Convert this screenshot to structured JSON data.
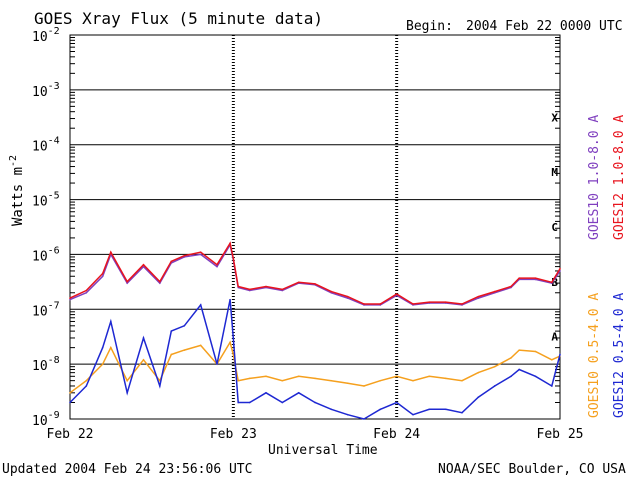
{
  "chart_data": {
    "type": "line",
    "title": "GOES Xray Flux (5 minute data)",
    "begin_label": "Begin:",
    "begin_value": "2004 Feb 22 0000 UTC",
    "xlabel": "Universal Time",
    "ylabel": "Watts m",
    "ylabel_exp": "-2",
    "y_scale": "log",
    "ylim": [
      1e-09,
      0.01
    ],
    "xlim_days": [
      0,
      3
    ],
    "x_tick_labels": [
      "Feb 22",
      "Feb 23",
      "Feb 24",
      "Feb 25"
    ],
    "y_tick_labels": [
      {
        "base": "10",
        "exp": "-2"
      },
      {
        "base": "10",
        "exp": "-3"
      },
      {
        "base": "10",
        "exp": "-4"
      },
      {
        "base": "10",
        "exp": "-5"
      },
      {
        "base": "10",
        "exp": "-6"
      },
      {
        "base": "10",
        "exp": "-7"
      },
      {
        "base": "10",
        "exp": "-8"
      },
      {
        "base": "10",
        "exp": "-9"
      }
    ],
    "flare_classes": [
      "X",
      "M",
      "C",
      "B",
      "A"
    ],
    "grid": true,
    "legend_placement": "right",
    "series": [
      {
        "name": "GOES10 1.0-8.0 A",
        "color": "#7f3fbf",
        "band": "long",
        "sat": "GOES10",
        "x": [
          0,
          0.1,
          0.2,
          0.25,
          0.35,
          0.45,
          0.55,
          0.62,
          0.7,
          0.8,
          0.9,
          0.98,
          1.0,
          1.03,
          1.1,
          1.2,
          1.3,
          1.4,
          1.5,
          1.6,
          1.7,
          1.8,
          1.9,
          2.0,
          2.1,
          2.2,
          2.3,
          2.4,
          2.5,
          2.6,
          2.7,
          2.75,
          2.85,
          2.95,
          3.0
        ],
        "y": [
          1.5e-07,
          2e-07,
          4e-07,
          1e-06,
          3e-07,
          6e-07,
          3e-07,
          7e-07,
          9e-07,
          1e-06,
          6e-07,
          1.5e-06,
          8e-07,
          2.5e-07,
          2.2e-07,
          2.5e-07,
          2.2e-07,
          3e-07,
          2.8e-07,
          2e-07,
          1.6e-07,
          1.2e-07,
          1.2e-07,
          1.8e-07,
          1.2e-07,
          1.3e-07,
          1.3e-07,
          1.2e-07,
          1.6e-07,
          2e-07,
          2.5e-07,
          3.5e-07,
          3.5e-07,
          3e-07,
          5e-07
        ]
      },
      {
        "name": "GOES12 1.0-8.0 A",
        "color": "#e8141e",
        "band": "long",
        "sat": "GOES12",
        "x": [
          0,
          0.1,
          0.2,
          0.25,
          0.35,
          0.45,
          0.55,
          0.62,
          0.7,
          0.8,
          0.9,
          0.98,
          1.0,
          1.03,
          1.1,
          1.2,
          1.3,
          1.4,
          1.5,
          1.6,
          1.7,
          1.8,
          1.9,
          2.0,
          2.1,
          2.2,
          2.3,
          2.4,
          2.5,
          2.6,
          2.7,
          2.75,
          2.85,
          2.95,
          3.0
        ],
        "y": [
          1.6e-07,
          2.2e-07,
          4.5e-07,
          1.1e-06,
          3.2e-07,
          6.5e-07,
          3.2e-07,
          7.5e-07,
          9.5e-07,
          1.1e-06,
          6.5e-07,
          1.6e-06,
          8.5e-07,
          2.6e-07,
          2.3e-07,
          2.6e-07,
          2.3e-07,
          3.1e-07,
          2.9e-07,
          2.1e-07,
          1.7e-07,
          1.25e-07,
          1.25e-07,
          1.9e-07,
          1.25e-07,
          1.35e-07,
          1.35e-07,
          1.25e-07,
          1.7e-07,
          2.1e-07,
          2.6e-07,
          3.7e-07,
          3.7e-07,
          3.1e-07,
          5.5e-07
        ]
      },
      {
        "name": "GOES10 0.5-4.0 A",
        "color": "#f5a01e",
        "band": "short",
        "sat": "GOES10",
        "x": [
          0,
          0.1,
          0.2,
          0.25,
          0.35,
          0.45,
          0.55,
          0.62,
          0.7,
          0.8,
          0.9,
          0.98,
          1.0,
          1.03,
          1.1,
          1.2,
          1.3,
          1.4,
          1.5,
          1.6,
          1.7,
          1.8,
          1.9,
          2.0,
          2.1,
          2.2,
          2.3,
          2.4,
          2.5,
          2.6,
          2.7,
          2.75,
          2.85,
          2.95,
          3.0
        ],
        "y": [
          3e-09,
          5e-09,
          1e-08,
          2e-08,
          5e-09,
          1.2e-08,
          5e-09,
          1.5e-08,
          1.8e-08,
          2.2e-08,
          1e-08,
          2.5e-08,
          1.5e-08,
          5e-09,
          5.5e-09,
          6e-09,
          5e-09,
          6e-09,
          5.5e-09,
          5e-09,
          4.5e-09,
          4e-09,
          5e-09,
          6e-09,
          5e-09,
          6e-09,
          5.5e-09,
          5e-09,
          7e-09,
          9e-09,
          1.3e-08,
          1.8e-08,
          1.7e-08,
          1.2e-08,
          1.4e-08
        ]
      },
      {
        "name": "GOES12 0.5-4.0 A",
        "color": "#1e28d2",
        "band": "short",
        "sat": "GOES12",
        "x": [
          0,
          0.1,
          0.2,
          0.25,
          0.35,
          0.45,
          0.55,
          0.62,
          0.7,
          0.8,
          0.9,
          0.98,
          1.0,
          1.03,
          1.1,
          1.2,
          1.3,
          1.4,
          1.5,
          1.6,
          1.7,
          1.8,
          1.9,
          2.0,
          2.1,
          2.2,
          2.3,
          2.4,
          2.5,
          2.6,
          2.7,
          2.75,
          2.85,
          2.95,
          3.0
        ],
        "y": [
          2e-09,
          4e-09,
          2e-08,
          6e-08,
          3e-09,
          3e-08,
          4e-09,
          4e-08,
          5e-08,
          1.2e-07,
          1e-08,
          1.5e-07,
          3e-08,
          2e-09,
          2e-09,
          3e-09,
          2e-09,
          3e-09,
          2e-09,
          1.5e-09,
          1.2e-09,
          1e-09,
          1.5e-09,
          2e-09,
          1.2e-09,
          1.5e-09,
          1.5e-09,
          1.3e-09,
          2.5e-09,
          4e-09,
          6e-09,
          8e-09,
          6e-09,
          4e-09,
          1.5e-08
        ]
      }
    ]
  },
  "footer": {
    "updated": "Updated 2004 Feb 24 23:56:06 UTC",
    "credit": "NOAA/SEC Boulder, CO USA"
  }
}
